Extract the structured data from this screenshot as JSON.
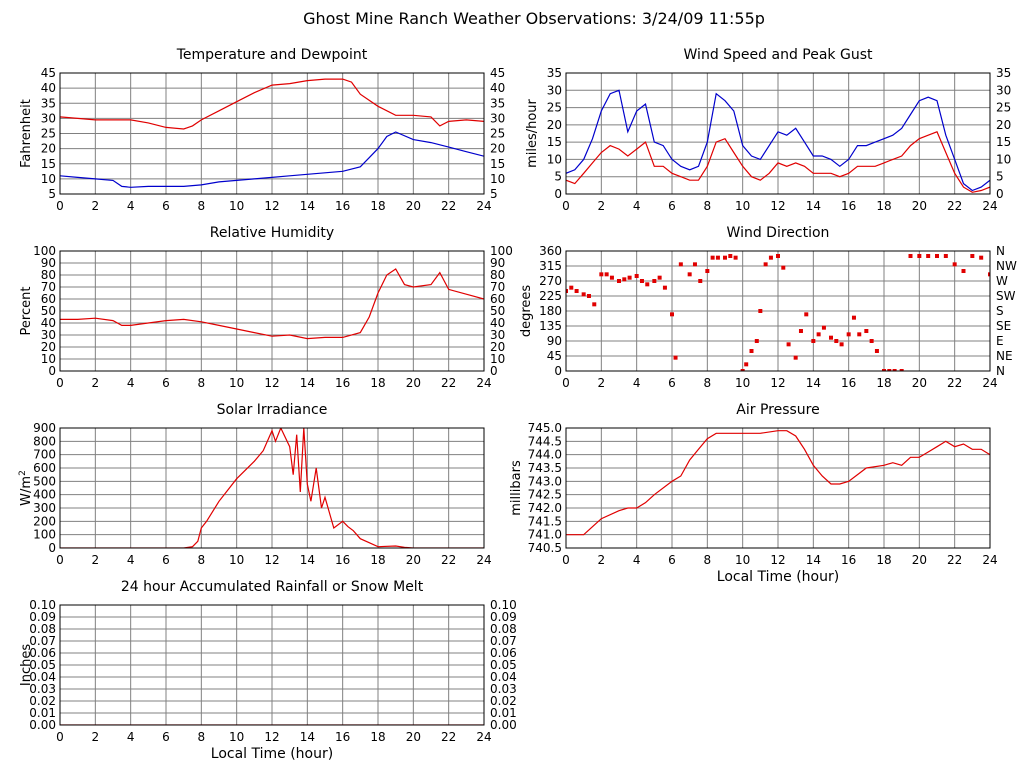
{
  "page_title": "Ghost Mine Ranch Weather Observations: 3/24/09 11:55p",
  "colors": {
    "grid": "#808080",
    "red": "#e00000",
    "blue": "#0000cc",
    "frame": "#000000"
  },
  "chart_data": [
    {
      "id": "temperature",
      "type": "line",
      "title": "Temperature and Dewpoint",
      "ylabel": "Fahrenheit",
      "xlim": [
        0,
        24
      ],
      "ylim": [
        5,
        45
      ],
      "yticks": [
        "5",
        "10",
        "15",
        "20",
        "25",
        "30",
        "35",
        "40",
        "45"
      ],
      "xticks": [
        "0",
        "2",
        "4",
        "6",
        "8",
        "10",
        "12",
        "14",
        "16",
        "18",
        "20",
        "22",
        "24"
      ],
      "right_ticks": true,
      "series": [
        {
          "color": "red",
          "x": [
            0,
            1,
            2,
            3,
            4,
            5,
            6,
            7,
            7.5,
            8,
            9,
            10,
            11,
            12,
            13,
            14,
            15,
            16,
            16.5,
            17,
            18,
            19,
            20,
            21,
            21.5,
            22,
            23,
            24
          ],
          "y": [
            30.5,
            30,
            29.5,
            29.5,
            29.5,
            28.5,
            27,
            26.5,
            27.5,
            29.5,
            32.5,
            35.5,
            38.5,
            41,
            41.5,
            42.5,
            43,
            43,
            42,
            38,
            34,
            31,
            31,
            30.5,
            27.5,
            29,
            29.5,
            29
          ]
        },
        {
          "color": "blue",
          "x": [
            0,
            1,
            2,
            3,
            3.5,
            4,
            5,
            6,
            7,
            8,
            9,
            10,
            11,
            12,
            13,
            14,
            15,
            16,
            17,
            17.5,
            18,
            18.5,
            19,
            20,
            21,
            22,
            23,
            24
          ],
          "y": [
            11,
            10.5,
            10,
            9.5,
            7.5,
            7.2,
            7.5,
            7.5,
            7.5,
            8,
            9,
            9.5,
            10,
            10.5,
            11,
            11.5,
            12,
            12.5,
            14,
            17,
            20,
            24,
            25.5,
            23,
            22,
            20.5,
            19,
            17.5
          ]
        }
      ]
    },
    {
      "id": "wind_speed",
      "type": "line",
      "title": "Wind Speed and Peak Gust",
      "ylabel": "miles/hour",
      "xlim": [
        0,
        24
      ],
      "ylim": [
        0,
        35
      ],
      "yticks": [
        "0",
        "5",
        "10",
        "15",
        "20",
        "25",
        "30",
        "35"
      ],
      "xticks": [
        "0",
        "2",
        "4",
        "6",
        "8",
        "10",
        "12",
        "14",
        "16",
        "18",
        "20",
        "22",
        "24"
      ],
      "right_ticks": true,
      "series": [
        {
          "color": "blue",
          "x": [
            0,
            0.5,
            1,
            1.5,
            2,
            2.5,
            3,
            3.5,
            4,
            4.5,
            5,
            5.5,
            6,
            6.5,
            7,
            7.5,
            8,
            8.5,
            9,
            9.5,
            10,
            10.5,
            11,
            11.5,
            12,
            12.5,
            13,
            13.5,
            14,
            14.5,
            15,
            15.5,
            16,
            16.5,
            17,
            17.5,
            18,
            18.5,
            19,
            19.5,
            20,
            20.5,
            21,
            21.5,
            22,
            22.5,
            23,
            23.5,
            24
          ],
          "y": [
            6,
            7,
            10,
            16,
            24,
            29,
            30,
            18,
            24,
            26,
            15,
            14,
            10,
            8,
            7,
            8,
            15,
            29,
            27,
            24,
            14,
            11,
            10,
            14,
            18,
            17,
            19,
            15,
            11,
            11,
            10,
            8,
            10,
            14,
            14,
            15,
            16,
            17,
            19,
            23,
            27,
            28,
            27,
            17,
            10,
            3,
            1,
            2,
            4
          ]
        },
        {
          "color": "red",
          "x": [
            0,
            0.5,
            1,
            1.5,
            2,
            2.5,
            3,
            3.5,
            4,
            4.5,
            5,
            5.5,
            6,
            6.5,
            7,
            7.5,
            8,
            8.5,
            9,
            9.5,
            10,
            10.5,
            11,
            11.5,
            12,
            12.5,
            13,
            13.5,
            14,
            14.5,
            15,
            15.5,
            16,
            16.5,
            17,
            17.5,
            18,
            18.5,
            19,
            19.5,
            20,
            20.5,
            21,
            21.5,
            22,
            22.5,
            23,
            23.5,
            24
          ],
          "y": [
            4,
            3,
            6,
            9,
            12,
            14,
            13,
            11,
            13,
            15,
            8,
            8,
            6,
            5,
            4,
            4,
            8,
            15,
            16,
            12,
            8,
            5,
            4,
            6,
            9,
            8,
            9,
            8,
            6,
            6,
            6,
            5,
            6,
            8,
            8,
            8,
            9,
            10,
            11,
            14,
            16,
            17,
            18,
            12,
            6,
            2,
            0.5,
            1,
            2
          ]
        }
      ]
    },
    {
      "id": "humidity",
      "type": "line",
      "title": "Relative Humidity",
      "ylabel": "Percent",
      "xlim": [
        0,
        24
      ],
      "ylim": [
        0,
        100
      ],
      "yticks": [
        "0",
        "10",
        "20",
        "30",
        "40",
        "50",
        "60",
        "70",
        "80",
        "90",
        "100"
      ],
      "xticks": [
        "0",
        "2",
        "4",
        "6",
        "8",
        "10",
        "12",
        "14",
        "16",
        "18",
        "20",
        "22",
        "24"
      ],
      "right_ticks": true,
      "series": [
        {
          "color": "red",
          "x": [
            0,
            1,
            2,
            3,
            3.5,
            4,
            5,
            6,
            7,
            8,
            9,
            10,
            11,
            12,
            13,
            14,
            15,
            16,
            17,
            17.5,
            18,
            18.5,
            19,
            19.5,
            20,
            21,
            21.5,
            22,
            23,
            24
          ],
          "y": [
            43,
            43,
            44,
            42,
            38,
            38,
            40,
            42,
            43,
            41,
            38,
            35,
            32,
            29,
            30,
            27,
            28,
            28,
            32,
            45,
            65,
            80,
            85,
            72,
            70,
            72,
            82,
            68,
            64,
            60
          ]
        }
      ]
    },
    {
      "id": "wind_direction",
      "type": "scatter",
      "title": "Wind Direction",
      "ylabel": "degrees",
      "xlim": [
        0,
        24
      ],
      "ylim": [
        0,
        360
      ],
      "yticks": [
        "0",
        "45",
        "90",
        "135",
        "180",
        "225",
        "270",
        "315",
        "360"
      ],
      "xticks": [
        "0",
        "2",
        "4",
        "6",
        "8",
        "10",
        "12",
        "14",
        "16",
        "18",
        "20",
        "22",
        "24"
      ],
      "right_labels": [
        "N",
        "NE",
        "E",
        "SE",
        "S",
        "SW",
        "W",
        "NW",
        "N"
      ],
      "series": [
        {
          "color": "red",
          "x": [
            0,
            0.3,
            0.6,
            1,
            1.3,
            1.6,
            2,
            2.3,
            2.6,
            3,
            3.3,
            3.6,
            4,
            4.3,
            4.6,
            5,
            5.3,
            5.6,
            6,
            6.2,
            6.5,
            7,
            7.3,
            7.6,
            8,
            8.3,
            8.6,
            9,
            9.3,
            9.6,
            10,
            10.2,
            10.5,
            10.8,
            11,
            11.3,
            11.6,
            12,
            12.3,
            12.6,
            13,
            13.3,
            13.6,
            14,
            14.3,
            14.6,
            15,
            15.3,
            15.6,
            16,
            16.3,
            16.6,
            17,
            17.3,
            17.6,
            18,
            18.3,
            18.6,
            19,
            19.5,
            20,
            20.5,
            21,
            21.5,
            22,
            22.5,
            23,
            23.5,
            24
          ],
          "y": [
            240,
            250,
            240,
            230,
            225,
            200,
            290,
            290,
            280,
            270,
            275,
            280,
            285,
            270,
            260,
            270,
            280,
            250,
            170,
            40,
            320,
            290,
            320,
            270,
            300,
            340,
            340,
            340,
            345,
            340,
            0,
            20,
            60,
            90,
            180,
            320,
            340,
            345,
            310,
            80,
            40,
            120,
            170,
            90,
            110,
            130,
            100,
            90,
            80,
            110,
            160,
            110,
            120,
            90,
            60,
            0,
            0,
            0,
            0,
            345,
            345,
            345,
            345,
            345,
            320,
            300,
            345,
            340,
            290
          ]
        }
      ]
    },
    {
      "id": "solar",
      "type": "line",
      "title": "Solar Irradiance",
      "ylabel": "W/m",
      "ylabel_sup": "2",
      "xlim": [
        0,
        24
      ],
      "ylim": [
        0,
        900
      ],
      "yticks": [
        "0",
        "100",
        "200",
        "300",
        "400",
        "500",
        "600",
        "700",
        "800",
        "900"
      ],
      "xticks": [
        "0",
        "2",
        "4",
        "6",
        "8",
        "10",
        "12",
        "14",
        "16",
        "18",
        "20",
        "22",
        "24"
      ],
      "right_ticks": false,
      "series": [
        {
          "color": "red",
          "x": [
            0,
            7,
            7.5,
            7.8,
            8,
            8.3,
            9,
            10,
            11,
            11.5,
            12,
            12.2,
            12.5,
            13,
            13.2,
            13.4,
            13.6,
            13.8,
            14,
            14.2,
            14.5,
            14.8,
            15,
            15.5,
            16,
            16.3,
            16.6,
            17,
            17.5,
            18,
            19,
            19.5,
            20,
            24
          ],
          "y": [
            0,
            0,
            10,
            50,
            150,
            200,
            350,
            520,
            650,
            730,
            880,
            800,
            900,
            760,
            550,
            850,
            420,
            900,
            480,
            350,
            600,
            300,
            380,
            150,
            200,
            160,
            130,
            70,
            40,
            10,
            15,
            5,
            0,
            0
          ]
        }
      ]
    },
    {
      "id": "pressure",
      "type": "line",
      "title": "Air Pressure",
      "ylabel": "millibars",
      "xlabel": "Local Time (hour)",
      "xlim": [
        0,
        24
      ],
      "ylim": [
        740.5,
        745.0
      ],
      "yticks": [
        "740.5",
        "741.0",
        "741.5",
        "742.0",
        "742.5",
        "743.0",
        "743.5",
        "744.0",
        "744.5",
        "745.0"
      ],
      "xticks": [
        "0",
        "2",
        "4",
        "6",
        "8",
        "10",
        "12",
        "14",
        "16",
        "18",
        "20",
        "22",
        "24"
      ],
      "right_ticks": false,
      "series": [
        {
          "color": "red",
          "x": [
            0,
            0.5,
            1,
            1.5,
            2,
            3,
            3.5,
            4,
            4.5,
            5,
            6,
            6.5,
            7,
            7.5,
            8,
            8.5,
            9,
            10,
            11,
            12,
            12.5,
            13,
            13.5,
            14,
            14.5,
            15,
            15.5,
            16,
            17,
            18,
            18.5,
            19,
            19.5,
            20,
            20.5,
            21,
            21.5,
            22,
            22.5,
            23,
            23.5,
            24
          ],
          "y": [
            741.0,
            741.0,
            741.0,
            741.3,
            741.6,
            741.9,
            742.0,
            742.0,
            742.2,
            742.5,
            743.0,
            743.2,
            743.8,
            744.2,
            744.6,
            744.8,
            744.8,
            744.8,
            744.8,
            744.9,
            744.9,
            744.7,
            744.2,
            743.6,
            743.2,
            742.9,
            742.9,
            743.0,
            743.5,
            743.6,
            743.7,
            743.6,
            743.9,
            743.9,
            744.1,
            744.3,
            744.5,
            744.3,
            744.4,
            744.2,
            744.2,
            744.0
          ]
        }
      ]
    },
    {
      "id": "rainfall",
      "type": "line",
      "title": "24 hour Accumulated Rainfall or Snow Melt",
      "ylabel": "Inches",
      "xlabel": "Local Time (hour)",
      "xlim": [
        0,
        24
      ],
      "ylim": [
        0,
        0.1
      ],
      "yticks": [
        "0.00",
        "0.01",
        "0.02",
        "0.03",
        "0.04",
        "0.05",
        "0.06",
        "0.07",
        "0.08",
        "0.09",
        "0.10"
      ],
      "xticks": [
        "0",
        "2",
        "4",
        "6",
        "8",
        "10",
        "12",
        "14",
        "16",
        "18",
        "20",
        "22",
        "24"
      ],
      "right_ticks": true,
      "series": [
        {
          "color": "red",
          "x": [
            0,
            24
          ],
          "y": [
            0,
            0
          ]
        }
      ]
    }
  ]
}
